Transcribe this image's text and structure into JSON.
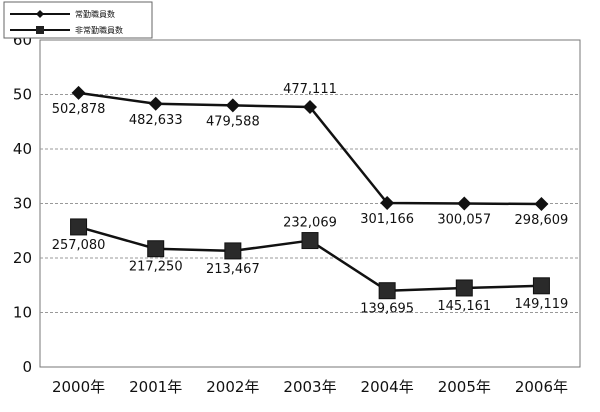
{
  "chart_data": {
    "type": "line",
    "categories": [
      "2000年",
      "2001年",
      "2002年",
      "2003年",
      "2004年",
      "2005年",
      "2006年"
    ],
    "ylim": [
      0,
      60
    ],
    "yticks": [
      0,
      10,
      20,
      30,
      40,
      50,
      60
    ],
    "grid": true,
    "legend_position": "top-left",
    "series": [
      {
        "name": "常勤職員数",
        "marker": "diamond",
        "color": "#111111",
        "values": [
          50.3,
          48.3,
          48.0,
          47.7,
          30.1,
          30.0,
          29.9
        ],
        "data_labels": [
          "502,878",
          "482,633",
          "479,588",
          "477,111",
          "301,166",
          "300,057",
          "298,609"
        ]
      },
      {
        "name": "非常勤職員数",
        "marker": "square",
        "color": "#111111",
        "values": [
          25.7,
          21.7,
          21.3,
          23.2,
          14.0,
          14.5,
          14.9
        ],
        "data_labels": [
          "257,080",
          "217,250",
          "213,467",
          "232,069",
          "139,695",
          "145,161",
          "149,119"
        ]
      }
    ]
  }
}
